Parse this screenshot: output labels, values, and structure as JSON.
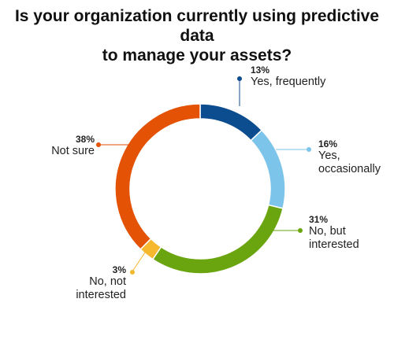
{
  "title_line1": "Is your organization currently using predictive data",
  "title_line2": "to manage your assets?",
  "chart_data": {
    "type": "pie",
    "donut": true,
    "title": "Is your organization currently using predictive data to manage your assets?",
    "legend": "none",
    "slices": [
      {
        "label": "Yes, frequently",
        "value": 13,
        "pct_label": "13%",
        "color": "#0b4d8f"
      },
      {
        "label": "Yes, occasionally",
        "value": 16,
        "pct_label": "16%",
        "color": "#7cc4ea"
      },
      {
        "label": "No, but interested",
        "value": 31,
        "pct_label": "31%",
        "color": "#6aa50f"
      },
      {
        "label": "No, not interested",
        "value": 3,
        "pct_label": "3%",
        "color": "#f5b82e"
      },
      {
        "label": "Not sure",
        "value": 38,
        "pct_label": "38%",
        "color": "#e35205"
      }
    ]
  }
}
